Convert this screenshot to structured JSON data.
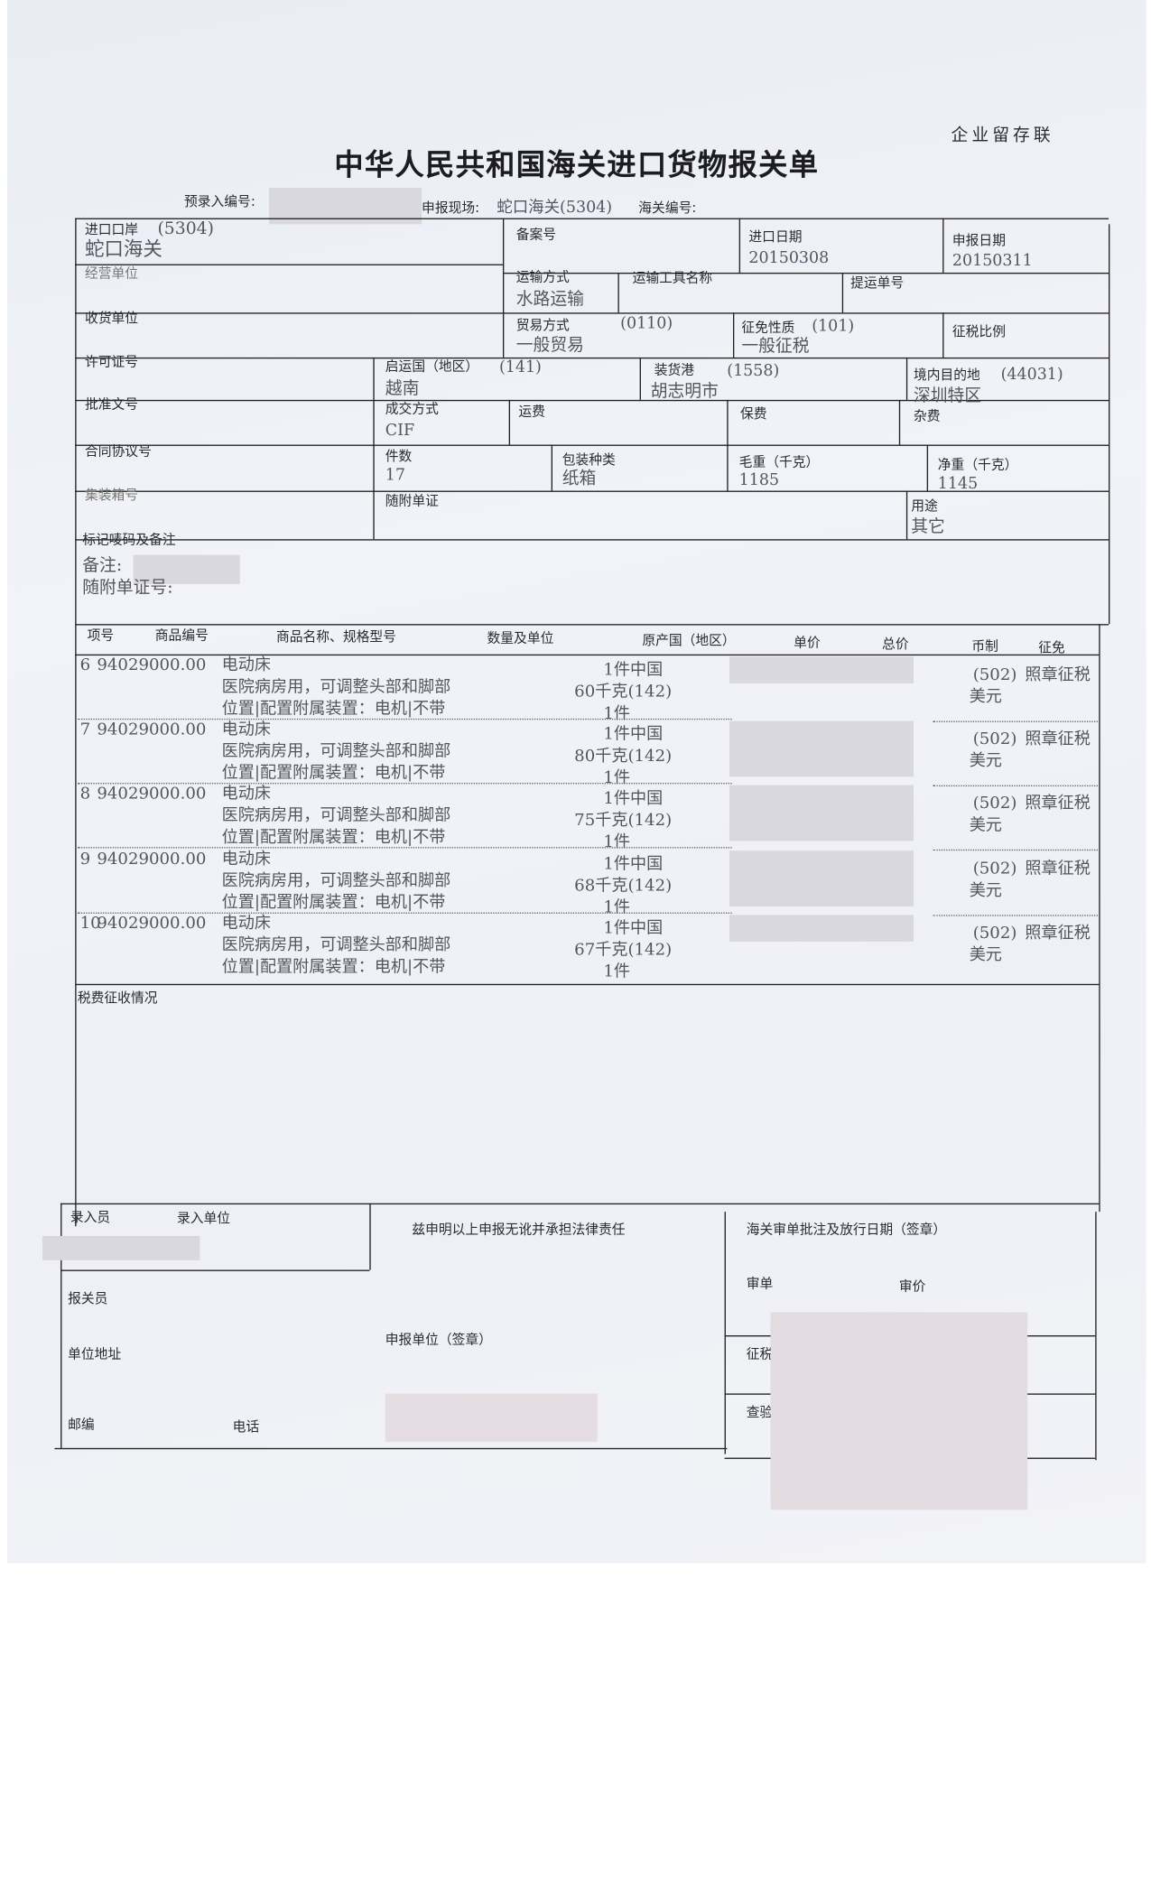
{
  "header": {
    "title": "中华人民共和国海关进口货物报关单",
    "copy_label": "企业留存联",
    "pre_entry_label": "预录入编号:",
    "declare_site_label": "申报现场:",
    "declare_site_value": "蛇口海关(5304)",
    "customs_no_label": "海关编号:"
  },
  "fields": {
    "import_port_label": "进口口岸",
    "import_port_code": "(5304)",
    "import_port_value": "蛇口海关",
    "record_no_label": "备案号",
    "import_date_label": "进口日期",
    "import_date_value": "20150308",
    "declare_date_label": "申报日期",
    "declare_date_value": "20150311",
    "operator_label": "经营单位",
    "transport_mode_label": "运输方式",
    "transport_mode_value": "水路运输",
    "vehicle_name_label": "运输工具名称",
    "bill_no_label": "提运单号",
    "consignee_label": "收货单位",
    "trade_mode_label": "贸易方式",
    "trade_mode_code": "(0110)",
    "trade_mode_value": "一般贸易",
    "levy_nature_label": "征免性质",
    "levy_nature_code": "(101)",
    "levy_nature_value": "一般征税",
    "tax_ratio_label": "征税比例",
    "license_label": "许可证号",
    "origin_country_label": "启运国（地区）",
    "origin_country_code": "(141)",
    "origin_country_value": "越南",
    "loading_port_label": "装货港",
    "loading_port_code": "(1558)",
    "loading_port_value": "胡志明市",
    "destination_label": "境内目的地",
    "destination_code": "(44031)",
    "destination_value": "深圳特区",
    "approval_label": "批准文号",
    "deal_mode_label": "成交方式",
    "deal_mode_value": "CIF",
    "freight_label": "运费",
    "insurance_label": "保费",
    "misc_label": "杂费",
    "contract_label": "合同协议号",
    "pieces_label": "件数",
    "pieces_value": "17",
    "package_label": "包装种类",
    "package_value": "纸箱",
    "gross_label": "毛重（千克）",
    "gross_value": "1185",
    "net_label": "净重（千克）",
    "net_value": "1145",
    "container_label": "集装箱号",
    "documents_label": "随附单证",
    "usage_label": "用途",
    "usage_value": "其它",
    "marks_label": "标记唛码及备注",
    "remark_label": "备注:",
    "doc_no_label": "随附单证号:"
  },
  "items_header": [
    "项号",
    "商品编号",
    "商品名称、规格型号",
    "数量及单位",
    "原产国（地区）",
    "单价",
    "总价",
    "币制",
    "征免"
  ],
  "items": [
    {
      "no": "6",
      "code": "94029000.00",
      "name": "电动床",
      "spec1": "医院病房用，可调整头部和脚部",
      "spec2": "位置|配置附属装置：电机|不带",
      "qty1": "1件中国",
      "qty2": "60千克(142)",
      "qty3": "1件",
      "currency_code": "(502)",
      "levy": "照章征税",
      "currency": "美元"
    },
    {
      "no": "7",
      "code": "94029000.00",
      "name": "电动床",
      "spec1": "医院病房用，可调整头部和脚部",
      "spec2": "位置|配置附属装置：电机|不带",
      "qty1": "1件中国",
      "qty2": "80千克(142)",
      "qty3": "1件",
      "currency_code": "(502)",
      "levy": "照章征税",
      "currency": "美元"
    },
    {
      "no": "8",
      "code": "94029000.00",
      "name": "电动床",
      "spec1": "医院病房用，可调整头部和脚部",
      "spec2": "位置|配置附属装置：电机|不带",
      "qty1": "1件中国",
      "qty2": "75千克(142)",
      "qty3": "1件",
      "currency_code": "(502)",
      "levy": "照章征税",
      "currency": "美元"
    },
    {
      "no": "9",
      "code": "94029000.00",
      "name": "电动床",
      "spec1": "医院病房用，可调整头部和脚部",
      "spec2": "位置|配置附属装置：电机|不带",
      "qty1": "1件中国",
      "qty2": "68千克(142)",
      "qty3": "1件",
      "currency_code": "(502)",
      "levy": "照章征税",
      "currency": "美元"
    },
    {
      "no": "10",
      "code": "94029000.00",
      "name": "电动床",
      "spec1": "医院病房用，可调整头部和脚部",
      "spec2": "位置|配置附属装置：电机|不带",
      "qty1": "1件中国",
      "qty2": "67千克(142)",
      "qty3": "1件",
      "currency_code": "(502)",
      "levy": "照章征税",
      "currency": "美元"
    }
  ],
  "footer": {
    "tax_label": "税费征收情况",
    "entry_clerk_label": "录入员",
    "entry_unit_label": "录入单位",
    "declaration_text": "兹申明以上申报无讹并承担法律责任",
    "customs_approval_label": "海关审单批注及放行日期（签章）",
    "broker_label": "报关员",
    "address_label": "单位地址",
    "declarant_label": "申报单位（签章）",
    "postcode_label": "邮编",
    "phone_label": "电话",
    "review_label": "审单",
    "price_review_label": "审价",
    "tax_levy_label": "征税",
    "inspection_label": "查验"
  }
}
